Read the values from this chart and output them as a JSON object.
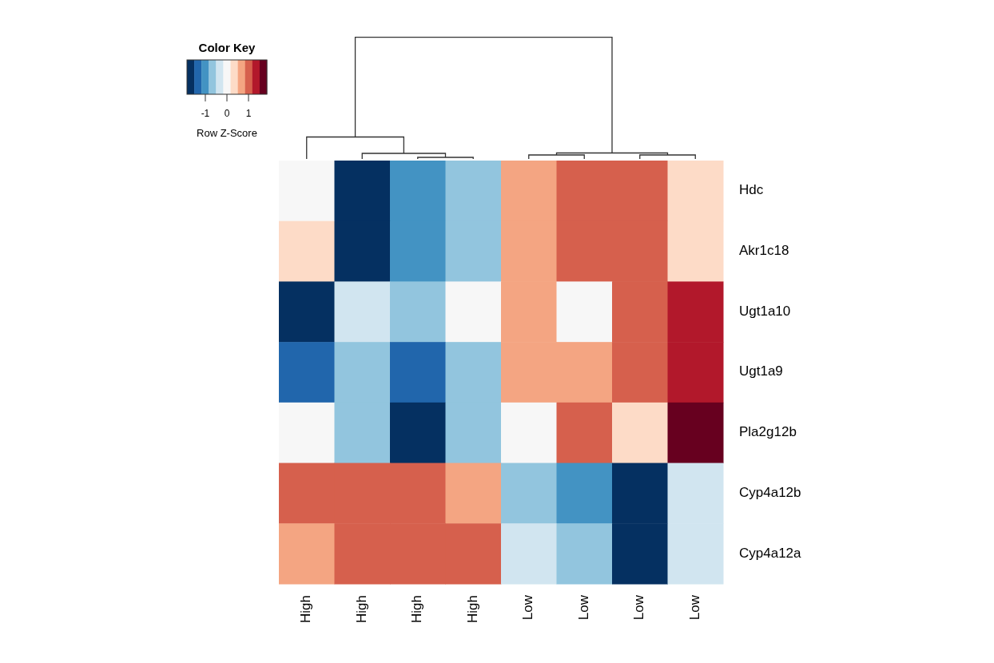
{
  "chart_data": {
    "type": "heatmap",
    "title": "Color Key",
    "clabel": "Row Z-Score",
    "categories": [
      "High",
      "High",
      "High",
      "High",
      "Low",
      "Low",
      "Low",
      "Low"
    ],
    "y_categories": [
      "Hdc",
      "Akr1c18",
      "Ugt1a10",
      "Ugt1a9",
      "Pla2g12b",
      "Cyp4a12b",
      "Cyp4a12a"
    ],
    "cells": [
      [
        0,
        -1.7,
        -1,
        -0.65,
        0.65,
        1,
        1,
        0.35
      ],
      [
        0.35,
        -1.7,
        -1,
        -0.65,
        0.65,
        1,
        1,
        0.35
      ],
      [
        -1.7,
        -0.35,
        -0.65,
        0,
        0.65,
        0,
        1,
        1.35
      ],
      [
        -1.35,
        -0.65,
        -1.35,
        -0.65,
        0.65,
        0.65,
        1,
        1.35
      ],
      [
        0,
        -0.65,
        -1.7,
        -0.65,
        0,
        1,
        0.35,
        1.7
      ],
      [
        1,
        1,
        1,
        0.65,
        -0.65,
        -1,
        -1.7,
        -0.35
      ],
      [
        0.65,
        1,
        1,
        1,
        -0.35,
        -0.65,
        -1.7,
        -0.35
      ]
    ],
    "clim": [
      -1.85,
      1.85
    ],
    "cticks": [
      -1,
      0,
      1
    ]
  }
}
